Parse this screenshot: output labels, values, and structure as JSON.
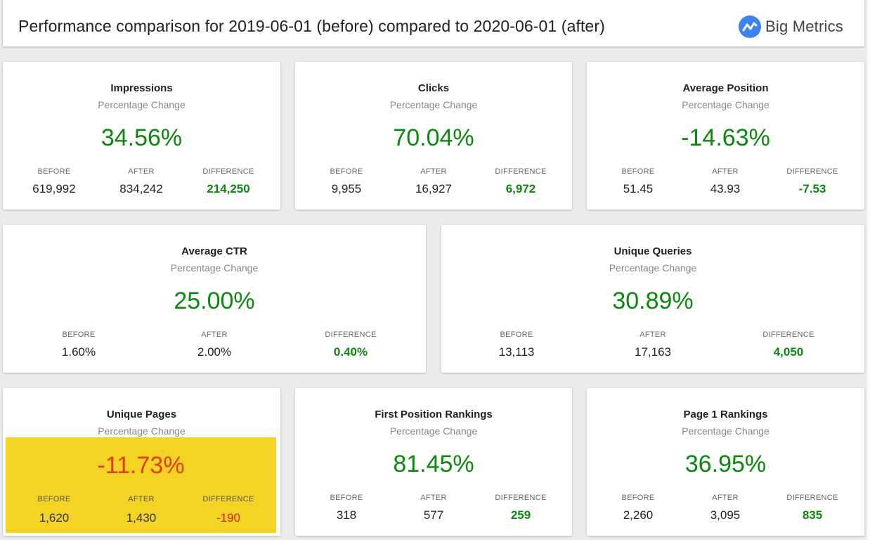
{
  "header": {
    "title": "Performance comparison for 2019-06-01 (before) compared to 2020-06-01 (after)",
    "logo_text": "Big Metrics",
    "logo_icon": "big-metrics-logo-icon",
    "accent_color": "#3b82f6"
  },
  "labels": {
    "subtitle": "Percentage Change",
    "before": "BEFORE",
    "after": "AFTER",
    "difference": "DIFFERENCE"
  },
  "colors": {
    "positive": "#0a8a0a",
    "negative": "#e11d1d",
    "highlight_bg": "#f3d422"
  },
  "cards": [
    {
      "title": "Impressions",
      "pct": "34.56%",
      "before": "619,992",
      "after": "834,242",
      "diff": "214,250"
    },
    {
      "title": "Clicks",
      "pct": "70.04%",
      "before": "9,955",
      "after": "16,927",
      "diff": "6,972"
    },
    {
      "title": "Average Position",
      "pct": "-14.63%",
      "before": "51.45",
      "after": "43.93",
      "diff": "-7.53"
    },
    {
      "title": "Average CTR",
      "pct": "25.00%",
      "before": "1.60%",
      "after": "2.00%",
      "diff": "0.40%"
    },
    {
      "title": "Unique Queries",
      "pct": "30.89%",
      "before": "13,113",
      "after": "17,163",
      "diff": "4,050"
    },
    {
      "title": "Unique Pages",
      "pct": "-11.73%",
      "before": "1,620",
      "after": "1,430",
      "diff": "-190"
    },
    {
      "title": "First Position Rankings",
      "pct": "81.45%",
      "before": "318",
      "after": "577",
      "diff": "259"
    },
    {
      "title": "Page 1 Rankings",
      "pct": "36.95%",
      "before": "2,260",
      "after": "3,095",
      "diff": "835"
    }
  ]
}
